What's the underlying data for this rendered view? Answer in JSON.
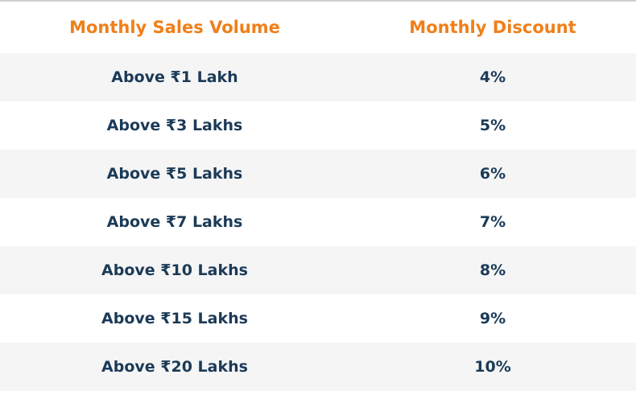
{
  "table": {
    "headers": {
      "volume": "Monthly Sales Volume",
      "discount": "Monthly Discount"
    },
    "rows": [
      {
        "volume": "Above ₹1 Lakh",
        "discount": "4%"
      },
      {
        "volume": "Above ₹3 Lakhs",
        "discount": "5%"
      },
      {
        "volume": "Above ₹5 Lakhs",
        "discount": "6%"
      },
      {
        "volume": "Above ₹7 Lakhs",
        "discount": "7%"
      },
      {
        "volume": "Above ₹10 Lakhs",
        "discount": "8%"
      },
      {
        "volume": "Above ₹15 Lakhs",
        "discount": "9%"
      },
      {
        "volume": "Above ₹20 Lakhs",
        "discount": "10%"
      }
    ]
  },
  "colors": {
    "header_text": "#f07f1a",
    "body_text": "#1b3a57",
    "stripe": "#f5f5f5"
  }
}
